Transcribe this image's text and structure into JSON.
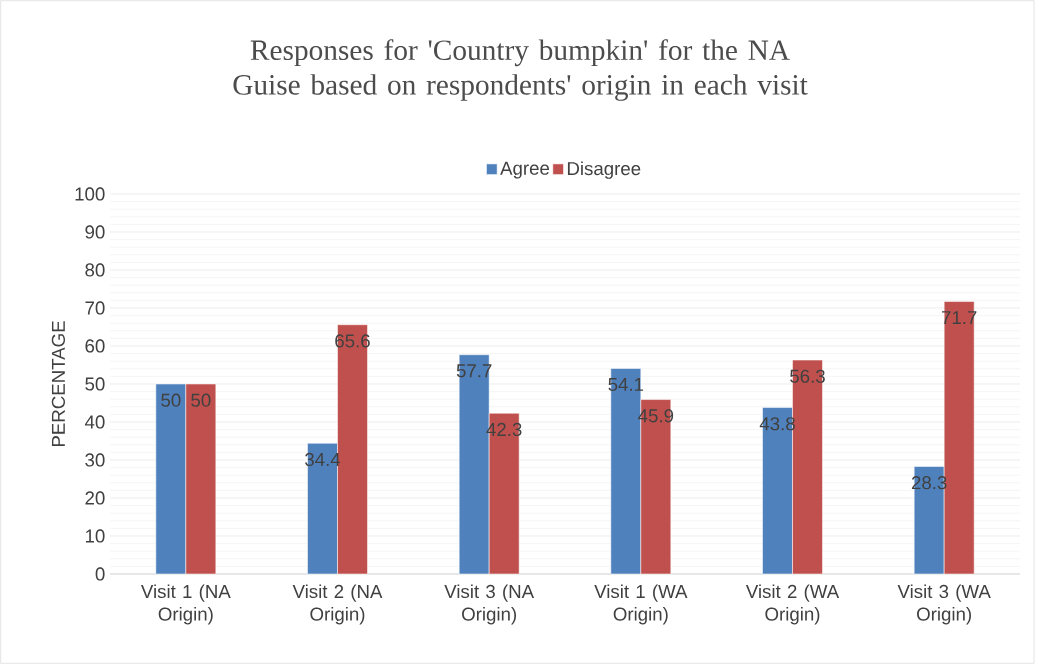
{
  "chart_data": {
    "type": "bar",
    "title": "Responses for 'Country bumpkin' for the NA Guise based on respondents' origin in each visit",
    "ylabel": "PERCENTAGE",
    "categories": [
      "Visit 1 (NA Origin)",
      "Visit 2 (NA Origin)",
      "Visit 3 (NA Origin)",
      "Visit 1 (WA Origin)",
      "Visit 2 (WA Origin)",
      "Visit 3 (WA Origin)"
    ],
    "series": [
      {
        "name": "Agree",
        "color": "#4f81bd",
        "values": [
          50,
          34.4,
          57.7,
          54.1,
          43.8,
          28.3
        ]
      },
      {
        "name": "Disagree",
        "color": "#c0504d",
        "values": [
          50,
          65.6,
          42.3,
          45.9,
          56.3,
          71.7
        ]
      }
    ],
    "ylim": [
      0,
      100
    ],
    "yticks": [
      0,
      10,
      20,
      30,
      40,
      50,
      60,
      70,
      80,
      90,
      100
    ],
    "grid": "y",
    "legend": "top",
    "data_labels": true
  }
}
